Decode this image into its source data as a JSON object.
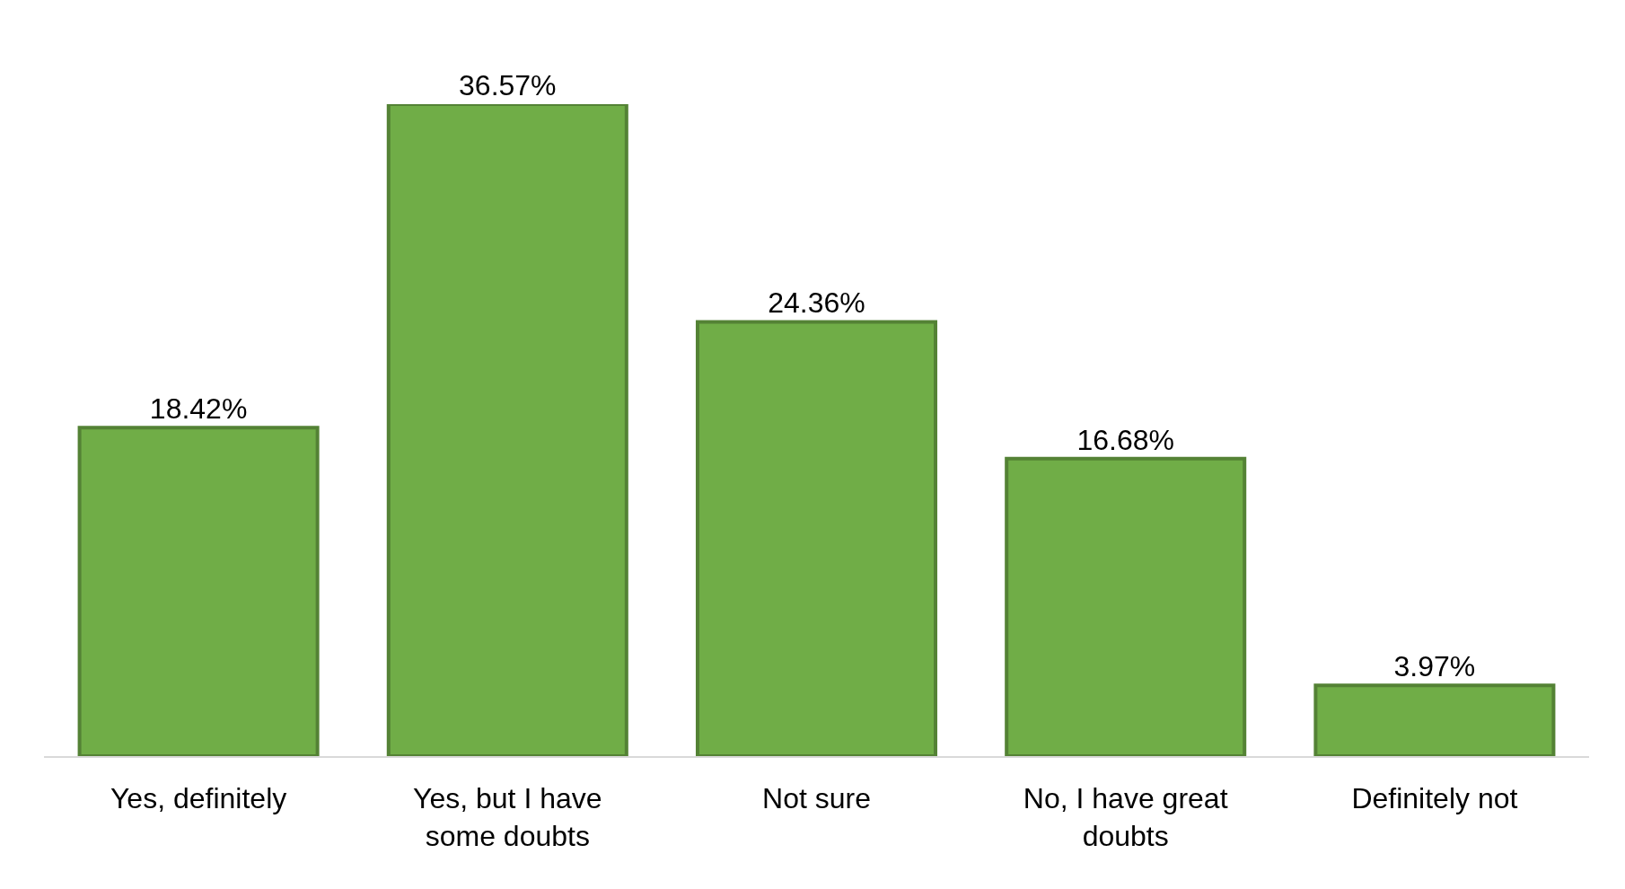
{
  "chart_data": {
    "type": "bar",
    "categories": [
      "Yes, definitely",
      "Yes, but I have some doubts",
      "Not sure",
      "No, I have great doubts",
      "Definitely not"
    ],
    "values": [
      18.42,
      36.57,
      24.36,
      16.68,
      3.97
    ],
    "value_labels": [
      "18.42%",
      "36.57%",
      "24.36%",
      "16.68%",
      "3.97%"
    ],
    "color": "#70ad47",
    "tick_labels": "x",
    "grid": false
  }
}
